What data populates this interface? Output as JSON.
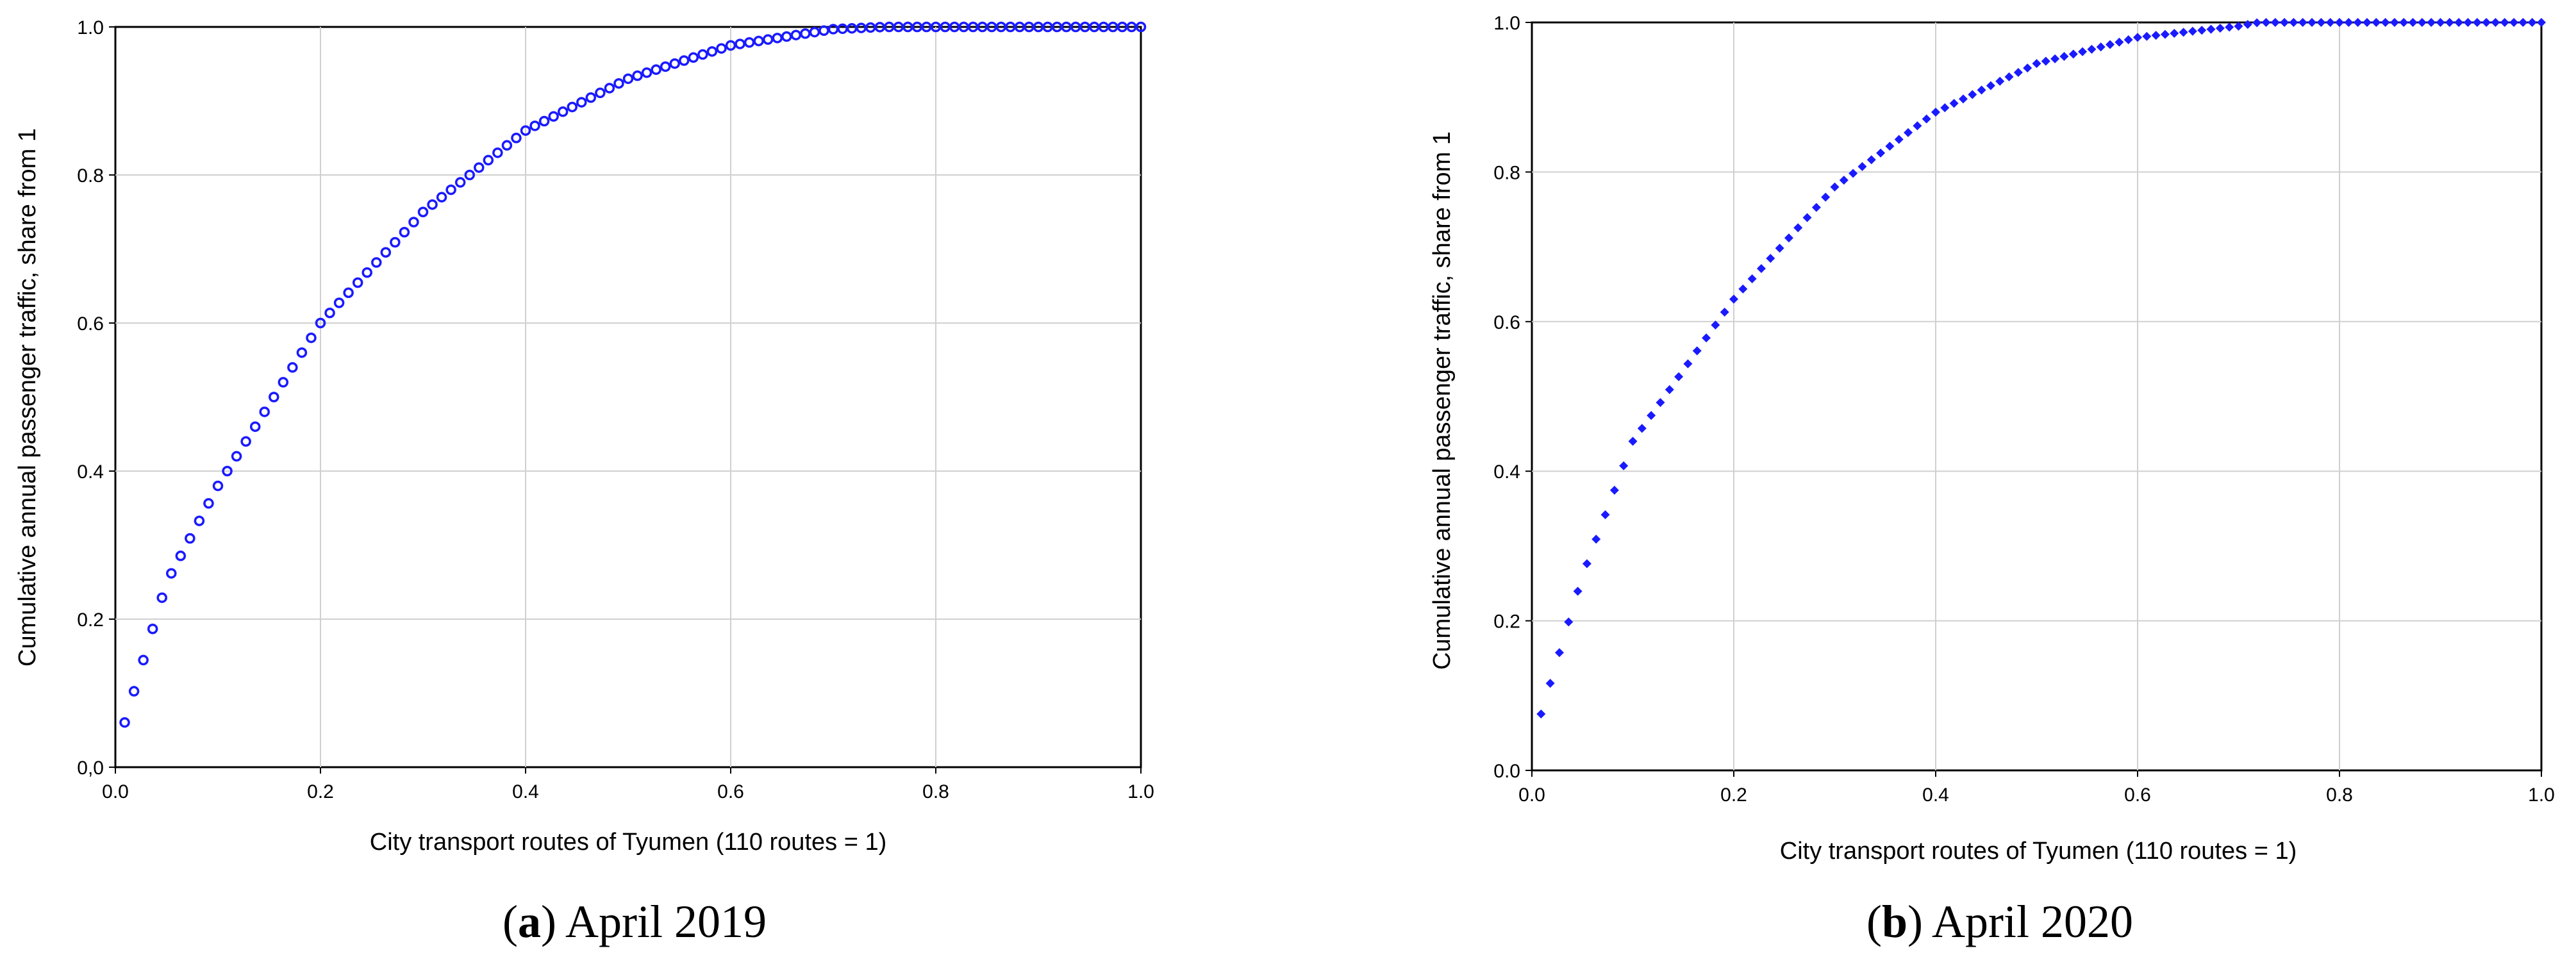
{
  "chart_data": [
    {
      "type": "scatter",
      "xlabel": "City transport routes of Tyumen (110 routes = 1)",
      "ylabel": "Cumulative annual passenger traffic, share from 1",
      "xlim": [
        0,
        1
      ],
      "ylim": [
        0,
        1
      ],
      "x_ticks": [
        "0.0",
        "0.2",
        "0.4",
        "0.6",
        "0.8",
        "1.0"
      ],
      "y_ticks": [
        "0,0",
        "0.2",
        "0.4",
        "0.6",
        "0.8",
        "1.0"
      ],
      "grid": true,
      "marker": "open-circle",
      "color": "#1a1aff",
      "caption_letter": "a",
      "caption_text": "April 2019",
      "points_x_from": "i/110, i = 1..110",
      "points_y_shape": "concave saturating curve, 0.06 at x=0.009, 0.60 at x=0.2, 0.86 at x=0.4, 0.98 at x=0.6, 1.00 from x≈0.7"
    },
    {
      "type": "scatter",
      "xlabel": "City transport routes of Tyumen (110 routes = 1)",
      "ylabel": "Cumulative annual passenger traffic, share from 1",
      "xlim": [
        0,
        1
      ],
      "ylim": [
        0,
        1
      ],
      "x_ticks": [
        "0.0",
        "0.2",
        "0.4",
        "0.6",
        "0.8",
        "1.0"
      ],
      "y_ticks": [
        "0.0",
        "0.2",
        "0.4",
        "0.6",
        "0.8",
        "1.0"
      ],
      "grid": true,
      "marker": "filled-diamond",
      "color": "#1a1aff",
      "caption_letter": "b",
      "caption_text": "April 2020",
      "points_x_from": "i/110, i = 1..110",
      "points_y_shape": "concave saturating curve, 0.07 at x=0.009, 0.63 at x=0.2, 0.88 at x=0.4, 0.98 at x=0.6, 1.00 from x≈0.72"
    }
  ]
}
